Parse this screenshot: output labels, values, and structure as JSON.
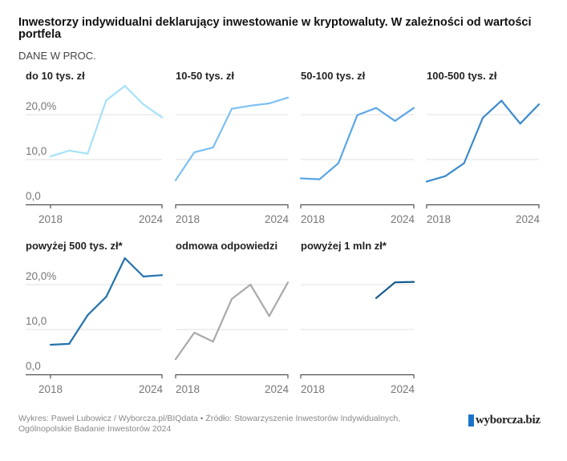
{
  "header": {
    "title": "Inwestorzy indywidualni deklarujący inwestowanie w kryptowaluty. W zależności od wartości portfela",
    "subtitle": "DANE W PROC."
  },
  "chart_data": [
    {
      "type": "line",
      "title": "do 10 tys. zł",
      "color": "#a6e1f8",
      "x": [
        2018,
        2019,
        2020,
        2021,
        2022,
        2023,
        2024
      ],
      "values": [
        10.7,
        12.0,
        11.3,
        23.2,
        26.4,
        22.3,
        19.4
      ],
      "yticks": [
        "0,0",
        "10,0",
        "20,0%"
      ],
      "ylim": [
        0,
        30
      ],
      "xticks": [
        "2018",
        "2024"
      ],
      "show_y_labels": true
    },
    {
      "type": "line",
      "title": "10-50 tys. zł",
      "color": "#7cc0f4",
      "x": [
        2018,
        2019,
        2020,
        2021,
        2022,
        2023,
        2024
      ],
      "values": [
        5.4,
        11.6,
        12.7,
        21.3,
        22.0,
        22.5,
        23.8
      ],
      "yticks": [
        "0,0",
        "10,0",
        "20,0%"
      ],
      "ylim": [
        0,
        30
      ],
      "xticks": [
        "2018",
        "2024"
      ],
      "show_y_labels": false
    },
    {
      "type": "line",
      "title": "50-100 tys. zł",
      "color": "#5aa6e6",
      "x": [
        2018,
        2019,
        2020,
        2021,
        2022,
        2023,
        2024
      ],
      "values": [
        5.8,
        5.6,
        9.2,
        19.9,
        21.5,
        18.6,
        21.5
      ],
      "yticks": [
        "0,0",
        "10,0",
        "20,0%"
      ],
      "ylim": [
        0,
        30
      ],
      "xticks": [
        "2018",
        "2024"
      ],
      "show_y_labels": false
    },
    {
      "type": "line",
      "title": "100-500 tys. zł",
      "color": "#3a8acb",
      "x": [
        2018,
        2019,
        2020,
        2021,
        2022,
        2023,
        2024
      ],
      "values": [
        5.1,
        6.3,
        9.2,
        19.3,
        23.1,
        18.0,
        22.3
      ],
      "yticks": [
        "0,0",
        "10,0",
        "20,0%"
      ],
      "ylim": [
        0,
        30
      ],
      "xticks": [
        "2018",
        "2024"
      ],
      "show_y_labels": false
    },
    {
      "type": "line",
      "title": "powyżej 500 tys. zł*",
      "color": "#2372ad",
      "x": [
        2018,
        2019,
        2020,
        2021,
        2022,
        2023,
        2024
      ],
      "values": [
        6.6,
        6.8,
        13.2,
        17.3,
        25.9,
        21.8,
        22.1
      ],
      "yticks": [
        "0,0",
        "10,0",
        "20,0%"
      ],
      "ylim": [
        0,
        30
      ],
      "xticks": [
        "2018",
        "2024"
      ],
      "show_y_labels": true
    },
    {
      "type": "line",
      "title": "odmowa odpowiedzi",
      "color": "#aaaaaa",
      "x": [
        2018,
        2019,
        2020,
        2021,
        2022,
        2023,
        2024
      ],
      "values": [
        3.4,
        9.3,
        7.3,
        16.8,
        20.0,
        13.0,
        20.5
      ],
      "yticks": [
        "0,0",
        "10,0",
        "20,0%"
      ],
      "ylim": [
        0,
        30
      ],
      "xticks": [
        "2018",
        "2024"
      ],
      "show_y_labels": false
    },
    {
      "type": "line",
      "title": "powyżej 1 mln zł*",
      "color": "#125a8e",
      "x": [
        2022,
        2023,
        2024
      ],
      "values": [
        17.0,
        20.5,
        20.6
      ],
      "yticks": [
        "0,0",
        "10,0",
        "20,0%"
      ],
      "ylim": [
        0,
        30
      ],
      "xticks": [
        "2018",
        "2024"
      ],
      "xlim": [
        2018,
        2024
      ],
      "show_y_labels": false
    }
  ],
  "footer": {
    "credit": "Wykres: Paweł Lubowicz / Wyborcza.pl/BIQdata • Źródło: Stowarzyszenie Inwestorów Indywidualnych, Ogólnopolskie Badanie Inwestorów 2024",
    "logo": "wyborcza.biz"
  }
}
